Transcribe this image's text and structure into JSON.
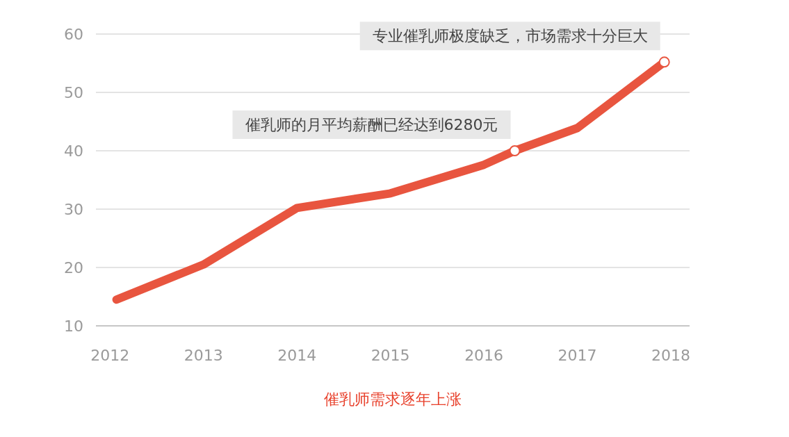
{
  "chart_data": {
    "type": "line",
    "title": "催乳师需求逐年上涨",
    "x": [
      2012.07,
      2013,
      2014,
      2015,
      2016,
      2016.33,
      2017,
      2017.93
    ],
    "series": [
      {
        "color": "#e8553f",
        "values": [
          14.5,
          20.5,
          30.2,
          32.7,
          37.6,
          40,
          43.9,
          55.2
        ]
      }
    ],
    "xlim": [
      2011.85,
      2018.2
    ],
    "xticks": [
      2012,
      2013,
      2014,
      2015,
      2016,
      2017,
      2018
    ],
    "ylim": [
      10,
      60
    ],
    "yticks": [
      10,
      20,
      30,
      40,
      50,
      60
    ],
    "grid": "y",
    "marker": "none",
    "line_style": "solid",
    "annotations": [
      {
        "text": "专业催乳师极度缺乏，市场需求十分巨大",
        "x": 2017.93,
        "y": 55.2
      },
      {
        "text": "催乳师的月平均薪酬已经达到6280元",
        "x": 2016.33,
        "y": 40
      }
    ]
  }
}
